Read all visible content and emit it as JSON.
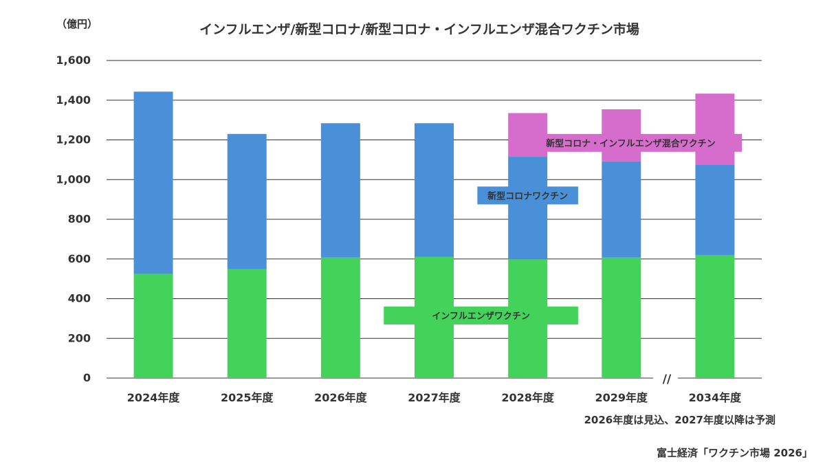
{
  "unit_label": "（億円）",
  "note": "2026年度は見込、2027年度以降は予測",
  "source": "富士経済「ワクチン市場 2026」",
  "axis_break_mark": "//",
  "chart_data": {
    "type": "bar",
    "stacked": true,
    "title": "インフルエンザ/新型コロナ/新型コロナ・インフルエンザ混合ワクチン市場",
    "ylabel": "（億円）",
    "ylim": [
      0,
      1600
    ],
    "yticks": [
      "0",
      "200",
      "400",
      "600",
      "800",
      "1,000",
      "1,200",
      "1,400",
      "1,600"
    ],
    "ytick_values": [
      0,
      200,
      400,
      600,
      800,
      1000,
      1200,
      1400,
      1600
    ],
    "grid": true,
    "categories": [
      "2024年度",
      "2025年度",
      "2026年度",
      "2027年度",
      "2028年度",
      "2029年度",
      "2034年度"
    ],
    "series": [
      {
        "name": "インフルエンザワクチン",
        "color": "#44D35A",
        "values": [
          525,
          548,
          607,
          611,
          600,
          607,
          620
        ]
      },
      {
        "name": "新型コロナワクチン",
        "color": "#4A90D9",
        "values": [
          918,
          682,
          677,
          673,
          515,
          485,
          455
        ]
      },
      {
        "name": "新型コロナ・インフルエンザ混合ワクチン",
        "color": "#D66CCC",
        "values": [
          0,
          0,
          0,
          0,
          220,
          262,
          358
        ]
      }
    ]
  }
}
